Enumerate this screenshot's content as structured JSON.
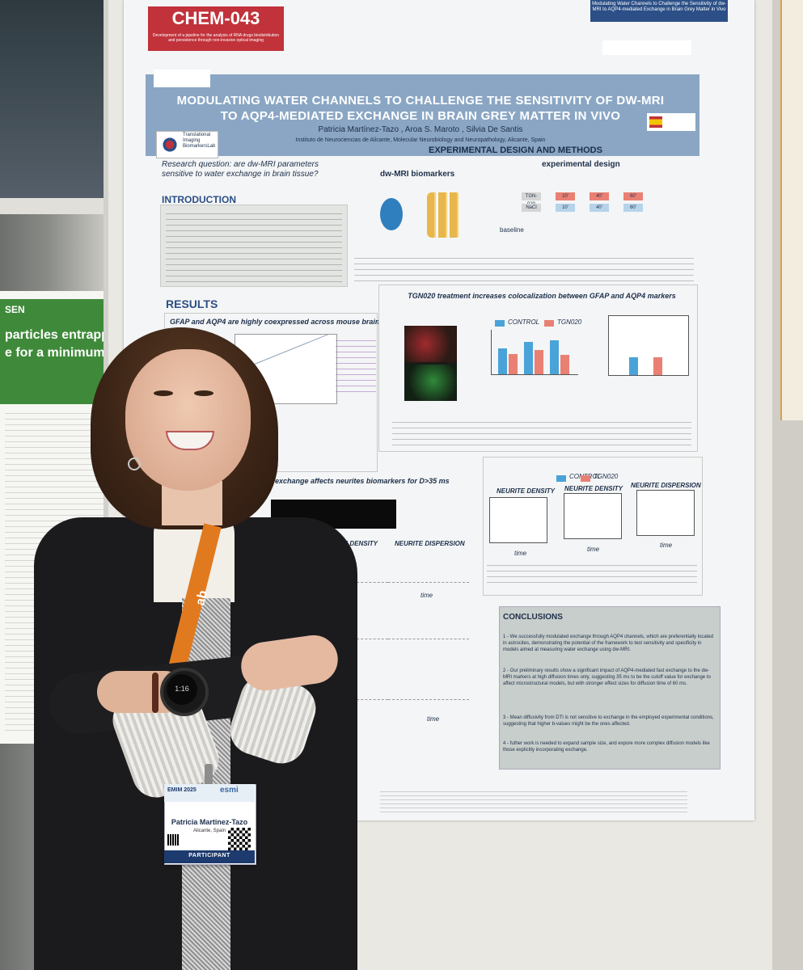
{
  "poster": {
    "code": "CHEM-043",
    "code_subtitle": "Development of a pipeline for the analysis of RNA drugs biodistribution and persistence through non-invasive optical imaging",
    "corner_label": "Modulating Water Channels to Challenge the Sensitivity of dw-MRI to AQP4-mediated Exchange in Brain Grey Matter in Vivo",
    "title_line1": "MODULATING WATER CHANNELS TO CHALLENGE THE SENSITIVITY OF DW-MRI",
    "title_line2": "TO AQP4-MEDIATED EXCHANGE IN BRAIN GREY MATTER IN VIVO",
    "authors": "Patricia Martínez-Tazo , Aroa S. Maroto , Silvia De Santis",
    "affiliation": "Instituto de Neurociencias de Alicante, Molecular Neurobiology and Neuropathology, Alicante, Spain",
    "lab_name": "Translational Imaging BiomarkersLab",
    "research_question": "Research question: are dw-MRI parameters sensitive to water exchange in brain tissue?",
    "intro_heading": "INTRODUCTION",
    "exp_heading": "EXPERIMENTAL DESIGN AND METHODS",
    "dw_label": "dw-MRI biomarkers",
    "exp_label": "experimental design",
    "baseline_label": "baseline",
    "results_heading": "RESULTS",
    "gfap_title": "GFAP and AQP4 are highly coexpressed across mouse brain",
    "tgn_title": "TGN020 treatment increases colocalization between GFAP and AQP4 markers",
    "legend_control": "CONTROL",
    "legend_tgn": "TGN020",
    "exchange_title": "exchange affects neurites biomarkers for D>35 ms",
    "plot1_title": "NEURITE DENSITY",
    "plot2_title": "NEURITE DENSITY",
    "plot3_title": "NEURITE DISPERSION",
    "time_label": "time",
    "nd_label": "NEURITE DENSITY",
    "ndisp_label": "NEURITE DISPERSION",
    "conclusions_heading": "CONCLUSIONS",
    "conclusions": [
      "1 - We successfully modulated exchange through AQP4 channels, which are preferentially located in astrocites, demonstrating the potential of the framework to test sensitivity and specificity in models aimed at measuring water exchange using dw-MRI.",
      "2 - Our preliminary results show a significant impact of AQP4-mediated fast exchange to the dw-MRI markers at high diffusion times only, suggesting 35 ms to be the cutoff value for exchange to affect microstructural models, but with stronger effect sizes for diffusion time of 60 ms.",
      "3 - Mean diffusivity from DTI is not sensitive to exchange in the employed experimental conditions, suggesting that higher b-values might be the ones affected.",
      "4 - futher work is needed to expand sample size, and expore more complex diffusion models like those explicitly incorporating exchange."
    ],
    "timeline_cells": [
      "TGN-020",
      "NaCl",
      "10'",
      "10'",
      "40'",
      "40'",
      "60'",
      "60'"
    ]
  },
  "left_poster": {
    "line0": "SEN",
    "line1": "particles entrapping perf",
    "line2": "e for a minimum of six ye"
  },
  "badge": {
    "event": "EMIM 2025",
    "org": "esmi",
    "name": "Patricia Martinez-Tazo",
    "city": "Alicante, Spain",
    "role": "PARTICIPANT"
  },
  "lanyard_text": "ab",
  "watch_time": "1:16",
  "colors": {
    "poster_red": "#c1323a",
    "poster_blue": "#2b4f86",
    "control_blue": "#4aa3d8",
    "tgn_red": "#e98073",
    "lanyard_orange": "#e17a1f"
  }
}
